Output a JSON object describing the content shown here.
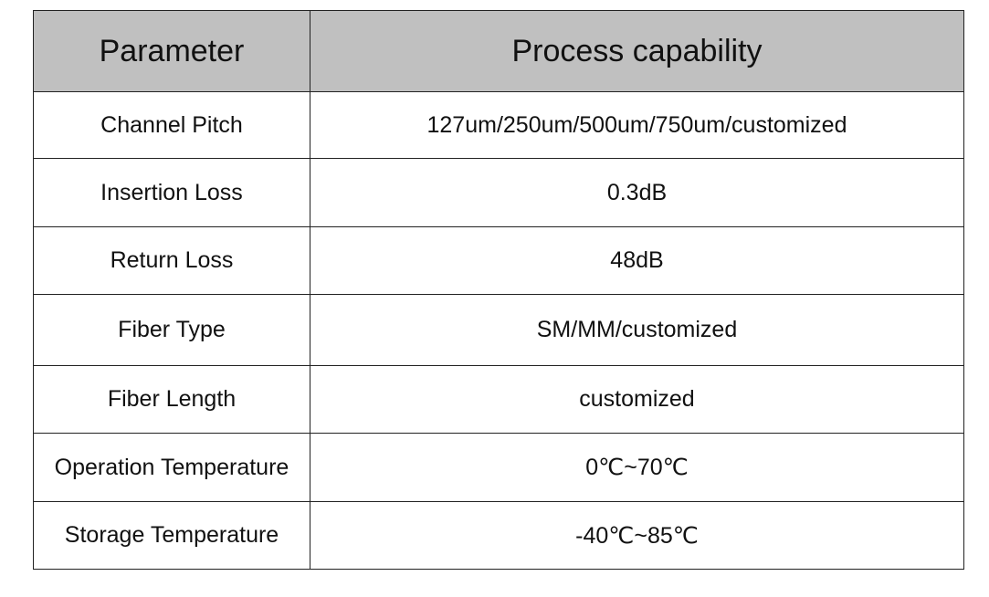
{
  "table": {
    "header": [
      "Parameter",
      "Process capability"
    ],
    "rows": [
      [
        "Channel Pitch",
        "127um/250um/500um/750um/customized"
      ],
      [
        "Insertion Loss",
        "0.3dB"
      ],
      [
        "Return Loss",
        "48dB"
      ],
      [
        "Fiber Type",
        "SM/MM/customized"
      ],
      [
        "Fiber Length",
        "customized"
      ],
      [
        "Operation Temperature",
        "0℃~70℃"
      ],
      [
        "Storage Temperature",
        "-40℃~85℃"
      ]
    ]
  }
}
